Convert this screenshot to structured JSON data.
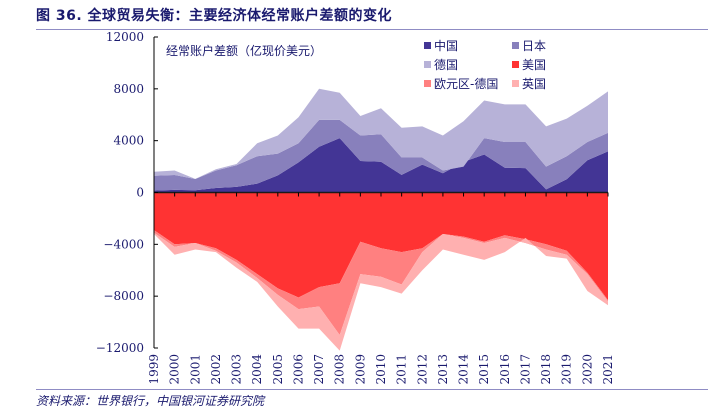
{
  "title": "图 36. 全球贸易失衡：主要经济体经常账户差额的变化",
  "source": "资料来源：世界银行，中国银河证券研究院",
  "chart_data": {
    "type": "area",
    "stacked": true,
    "title": "图 36. 全球贸易失衡：主要经济体经常账户差额的变化",
    "ylabel": "经常账户差额（亿现价美元）",
    "xlabel": "",
    "ylim": [
      -12000,
      12000
    ],
    "yticks": [
      12000,
      8000,
      4000,
      0,
      -4000,
      -8000,
      -12000
    ],
    "ytick_labels": [
      "12000",
      "8000",
      "4000",
      "0",
      "−4000",
      "−8000",
      "−12000"
    ],
    "legend_position": "top-right",
    "x": [
      "1999",
      "2000",
      "2001",
      "2002",
      "2003",
      "2004",
      "2005",
      "2006",
      "2007",
      "2008",
      "2009",
      "2010",
      "2011",
      "2012",
      "2013",
      "2014",
      "2015",
      "2016",
      "2017",
      "2018",
      "2019",
      "2020",
      "2021"
    ],
    "positive_series": [
      {
        "name": "中国",
        "color": "#433595",
        "values": [
          150,
          200,
          174,
          350,
          430,
          690,
          1320,
          2320,
          3530,
          4200,
          2430,
          2380,
          1360,
          2150,
          1480,
          2360,
          2930,
          1910,
          1880,
          240,
          1030,
          2490,
          3170
        ]
      },
      {
        "name": "日本",
        "color": "#8880bc",
        "values": [
          1150,
          1150,
          866,
          1350,
          1670,
          2110,
          1680,
          1480,
          2070,
          1400,
          1970,
          2120,
          1340,
          550,
          220,
          -360,
          1270,
          1990,
          2020,
          1760,
          1770,
          1410,
          1430
        ]
      },
      {
        "name": "德国",
        "color": "#b7b2d8",
        "values": [
          300,
          350,
          10,
          100,
          100,
          1000,
          1400,
          2000,
          2400,
          2100,
          1500,
          2000,
          2300,
          2400,
          2700,
          3500,
          2900,
          2900,
          2900,
          3100,
          2900,
          2800,
          3200
        ]
      }
    ],
    "negative_series": [
      {
        "name": "美国",
        "color": "#ff3333",
        "values": [
          -2900,
          -4000,
          -3900,
          -4300,
          -5200,
          -6300,
          -7400,
          -8100,
          -7300,
          -7000,
          -3800,
          -4300,
          -4600,
          -4300,
          -3200,
          -3400,
          -3800,
          -3300,
          -3600,
          -4000,
          -4500,
          -6200,
          -8300
        ]
      },
      {
        "name": "欧元区-德国",
        "color": "#ff8080",
        "values": [
          -200,
          -200,
          0,
          -200,
          -200,
          -300,
          -500,
          -900,
          -1500,
          -4000,
          -2500,
          -2200,
          -2500,
          -300,
          0,
          -100,
          -100,
          -200,
          -300,
          -400,
          -300,
          -100,
          -100
        ]
      },
      {
        "name": "英国",
        "color": "#ffb0b0",
        "values": [
          -100,
          -600,
          -500,
          -100,
          -400,
          -300,
          -900,
          -1500,
          -1700,
          -1200,
          -700,
          -800,
          -700,
          -1400,
          -1200,
          -1300,
          -1300,
          -1100,
          400,
          -500,
          -300,
          -1300,
          -300
        ]
      }
    ],
    "legend": [
      "中国",
      "日本",
      "德国",
      "美国",
      "欧元区-德国",
      "英国"
    ]
  }
}
